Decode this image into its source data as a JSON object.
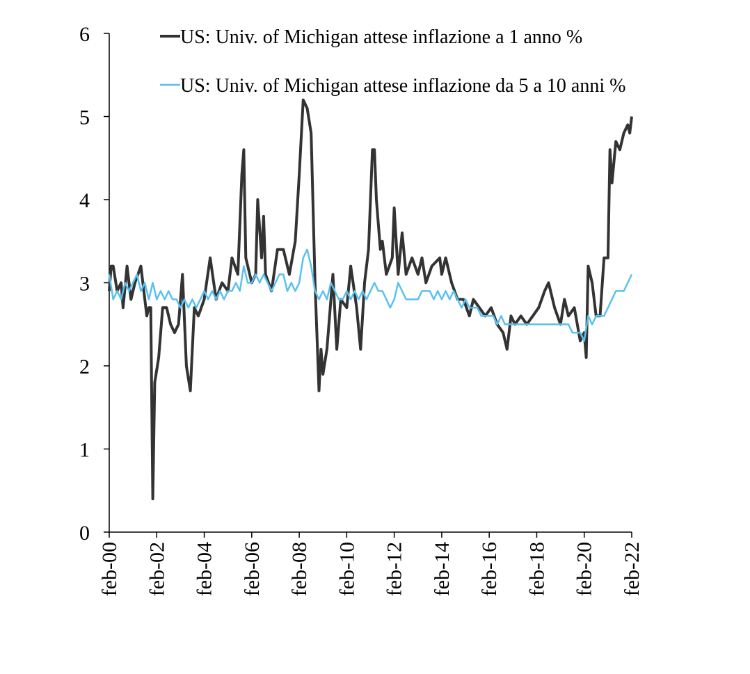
{
  "colors": {
    "series_1yr": "#333333",
    "series_5_10yr": "#5bc0f0",
    "axis": "#000000",
    "background": "#ffffff"
  },
  "chart_data": {
    "type": "line",
    "title": "",
    "xlabel": "",
    "ylabel": "",
    "ylim": [
      0,
      6
    ],
    "xlim": [
      "2000-02",
      "2022-02"
    ],
    "grid": false,
    "legend_position": "top",
    "yticks": [
      "0",
      "1",
      "2",
      "3",
      "4",
      "5",
      "6"
    ],
    "xticks": [
      "feb-00",
      "feb-02",
      "feb-04",
      "feb-06",
      "feb-08",
      "feb-10",
      "feb-12",
      "feb-14",
      "feb-16",
      "feb-18",
      "feb-20",
      "feb-22"
    ],
    "series": [
      {
        "name": "US: Univ. of Michigan attese inflazione a 1 anno %",
        "color": "#333333",
        "points": [
          [
            "2000-02",
            2.9
          ],
          [
            "2000-03",
            3.2
          ],
          [
            "2000-04",
            3.2
          ],
          [
            "2000-06",
            2.9
          ],
          [
            "2000-08",
            3.0
          ],
          [
            "2000-09",
            2.7
          ],
          [
            "2000-11",
            3.2
          ],
          [
            "2001-01",
            2.8
          ],
          [
            "2001-03",
            3.0
          ],
          [
            "2001-06",
            3.2
          ],
          [
            "2001-09",
            2.6
          ],
          [
            "2001-10",
            2.7
          ],
          [
            "2001-11",
            2.7
          ],
          [
            "2001-12",
            0.4
          ],
          [
            "2002-01",
            1.8
          ],
          [
            "2002-03",
            2.1
          ],
          [
            "2002-05",
            2.7
          ],
          [
            "2002-07",
            2.7
          ],
          [
            "2002-09",
            2.5
          ],
          [
            "2002-11",
            2.4
          ],
          [
            "2003-01",
            2.5
          ],
          [
            "2003-03",
            3.1
          ],
          [
            "2003-05",
            2.0
          ],
          [
            "2003-07",
            1.7
          ],
          [
            "2003-09",
            2.7
          ],
          [
            "2003-11",
            2.6
          ],
          [
            "2004-02",
            2.8
          ],
          [
            "2004-05",
            3.3
          ],
          [
            "2004-08",
            2.8
          ],
          [
            "2004-11",
            3.0
          ],
          [
            "2005-02",
            2.9
          ],
          [
            "2005-04",
            3.3
          ],
          [
            "2005-07",
            3.1
          ],
          [
            "2005-09",
            4.3
          ],
          [
            "2005-10",
            4.6
          ],
          [
            "2005-11",
            3.3
          ],
          [
            "2006-02",
            3.0
          ],
          [
            "2006-04",
            3.1
          ],
          [
            "2006-05",
            4.0
          ],
          [
            "2006-07",
            3.3
          ],
          [
            "2006-08",
            3.8
          ],
          [
            "2006-09",
            3.1
          ],
          [
            "2006-12",
            2.9
          ],
          [
            "2007-03",
            3.4
          ],
          [
            "2007-06",
            3.4
          ],
          [
            "2007-09",
            3.1
          ],
          [
            "2007-12",
            3.5
          ],
          [
            "2008-02",
            4.3
          ],
          [
            "2008-04",
            5.2
          ],
          [
            "2008-06",
            5.1
          ],
          [
            "2008-08",
            4.8
          ],
          [
            "2008-10",
            3.0
          ],
          [
            "2008-12",
            1.7
          ],
          [
            "2009-01",
            2.2
          ],
          [
            "2009-02",
            1.9
          ],
          [
            "2009-04",
            2.2
          ],
          [
            "2009-07",
            3.1
          ],
          [
            "2009-09",
            2.2
          ],
          [
            "2009-11",
            2.8
          ],
          [
            "2010-02",
            2.7
          ],
          [
            "2010-04",
            3.2
          ],
          [
            "2010-07",
            2.7
          ],
          [
            "2010-09",
            2.2
          ],
          [
            "2010-11",
            3.0
          ],
          [
            "2011-01",
            3.4
          ],
          [
            "2011-03",
            4.6
          ],
          [
            "2011-04",
            4.6
          ],
          [
            "2011-05",
            4.0
          ],
          [
            "2011-07",
            3.4
          ],
          [
            "2011-08",
            3.5
          ],
          [
            "2011-10",
            3.1
          ],
          [
            "2012-01",
            3.3
          ],
          [
            "2012-02",
            3.9
          ],
          [
            "2012-04",
            3.1
          ],
          [
            "2012-06",
            3.6
          ],
          [
            "2012-08",
            3.1
          ],
          [
            "2012-11",
            3.3
          ],
          [
            "2013-02",
            3.1
          ],
          [
            "2013-04",
            3.3
          ],
          [
            "2013-06",
            3.0
          ],
          [
            "2013-09",
            3.2
          ],
          [
            "2014-01",
            3.3
          ],
          [
            "2014-02",
            3.1
          ],
          [
            "2014-04",
            3.3
          ],
          [
            "2014-07",
            3.0
          ],
          [
            "2014-10",
            2.8
          ],
          [
            "2015-01",
            2.8
          ],
          [
            "2015-04",
            2.6
          ],
          [
            "2015-06",
            2.8
          ],
          [
            "2015-09",
            2.7
          ],
          [
            "2015-12",
            2.6
          ],
          [
            "2016-03",
            2.7
          ],
          [
            "2016-06",
            2.5
          ],
          [
            "2016-09",
            2.4
          ],
          [
            "2016-11",
            2.2
          ],
          [
            "2017-01",
            2.6
          ],
          [
            "2017-03",
            2.5
          ],
          [
            "2017-06",
            2.6
          ],
          [
            "2017-09",
            2.5
          ],
          [
            "2017-12",
            2.6
          ],
          [
            "2018-03",
            2.7
          ],
          [
            "2018-06",
            2.9
          ],
          [
            "2018-08",
            3.0
          ],
          [
            "2018-11",
            2.7
          ],
          [
            "2019-02",
            2.5
          ],
          [
            "2019-04",
            2.8
          ],
          [
            "2019-06",
            2.6
          ],
          [
            "2019-09",
            2.7
          ],
          [
            "2019-12",
            2.3
          ],
          [
            "2020-02",
            2.4
          ],
          [
            "2020-03",
            2.1
          ],
          [
            "2020-04",
            3.2
          ],
          [
            "2020-06",
            3.0
          ],
          [
            "2020-08",
            2.6
          ],
          [
            "2020-10",
            2.6
          ],
          [
            "2020-12",
            3.3
          ],
          [
            "2021-02",
            3.3
          ],
          [
            "2021-03",
            4.6
          ],
          [
            "2021-04",
            4.2
          ],
          [
            "2021-06",
            4.7
          ],
          [
            "2021-08",
            4.6
          ],
          [
            "2021-10",
            4.8
          ],
          [
            "2021-12",
            4.9
          ],
          [
            "2022-01",
            4.8
          ],
          [
            "2022-02",
            5.0
          ]
        ]
      },
      {
        "name": "US: Univ. of Michigan attese inflazione da 5 a 10 anni %",
        "color": "#5bc0f0",
        "points": [
          [
            "2000-02",
            3.1
          ],
          [
            "2000-04",
            2.8
          ],
          [
            "2000-06",
            2.9
          ],
          [
            "2000-08",
            2.8
          ],
          [
            "2000-10",
            3.0
          ],
          [
            "2000-12",
            2.9
          ],
          [
            "2001-02",
            3.0
          ],
          [
            "2001-04",
            3.1
          ],
          [
            "2001-06",
            2.9
          ],
          [
            "2001-08",
            3.0
          ],
          [
            "2001-10",
            2.8
          ],
          [
            "2001-12",
            3.0
          ],
          [
            "2002-02",
            2.8
          ],
          [
            "2002-04",
            2.9
          ],
          [
            "2002-06",
            2.8
          ],
          [
            "2002-08",
            2.9
          ],
          [
            "2002-10",
            2.8
          ],
          [
            "2002-12",
            2.8
          ],
          [
            "2003-02",
            2.7
          ],
          [
            "2003-04",
            2.8
          ],
          [
            "2003-06",
            2.7
          ],
          [
            "2003-08",
            2.8
          ],
          [
            "2003-10",
            2.7
          ],
          [
            "2003-12",
            2.8
          ],
          [
            "2004-02",
            2.9
          ],
          [
            "2004-04",
            2.8
          ],
          [
            "2004-06",
            2.9
          ],
          [
            "2004-08",
            2.8
          ],
          [
            "2004-10",
            2.9
          ],
          [
            "2004-12",
            2.8
          ],
          [
            "2005-02",
            2.9
          ],
          [
            "2005-04",
            2.9
          ],
          [
            "2005-06",
            3.0
          ],
          [
            "2005-08",
            2.9
          ],
          [
            "2005-10",
            3.2
          ],
          [
            "2005-12",
            3.0
          ],
          [
            "2006-02",
            3.0
          ],
          [
            "2006-04",
            3.1
          ],
          [
            "2006-06",
            3.0
          ],
          [
            "2006-08",
            3.1
          ],
          [
            "2006-10",
            3.0
          ],
          [
            "2006-12",
            2.9
          ],
          [
            "2007-02",
            3.0
          ],
          [
            "2007-04",
            3.1
          ],
          [
            "2007-06",
            3.1
          ],
          [
            "2007-08",
            2.9
          ],
          [
            "2007-10",
            3.0
          ],
          [
            "2007-12",
            2.9
          ],
          [
            "2008-02",
            3.0
          ],
          [
            "2008-04",
            3.3
          ],
          [
            "2008-06",
            3.4
          ],
          [
            "2008-08",
            3.2
          ],
          [
            "2008-10",
            2.9
          ],
          [
            "2008-12",
            2.8
          ],
          [
            "2009-02",
            2.9
          ],
          [
            "2009-04",
            2.8
          ],
          [
            "2009-06",
            3.0
          ],
          [
            "2009-08",
            2.9
          ],
          [
            "2009-10",
            2.8
          ],
          [
            "2009-12",
            2.8
          ],
          [
            "2010-02",
            2.9
          ],
          [
            "2010-04",
            2.8
          ],
          [
            "2010-06",
            2.9
          ],
          [
            "2010-08",
            2.8
          ],
          [
            "2010-10",
            2.9
          ],
          [
            "2010-12",
            2.8
          ],
          [
            "2011-02",
            2.9
          ],
          [
            "2011-04",
            3.0
          ],
          [
            "2011-06",
            2.9
          ],
          [
            "2011-08",
            2.9
          ],
          [
            "2011-10",
            2.8
          ],
          [
            "2011-12",
            2.7
          ],
          [
            "2012-02",
            2.8
          ],
          [
            "2012-04",
            3.0
          ],
          [
            "2012-06",
            2.9
          ],
          [
            "2012-08",
            2.8
          ],
          [
            "2012-10",
            2.8
          ],
          [
            "2012-12",
            2.8
          ],
          [
            "2013-02",
            2.8
          ],
          [
            "2013-04",
            2.9
          ],
          [
            "2013-06",
            2.9
          ],
          [
            "2013-08",
            2.9
          ],
          [
            "2013-10",
            2.8
          ],
          [
            "2013-12",
            2.9
          ],
          [
            "2014-02",
            2.8
          ],
          [
            "2014-04",
            2.9
          ],
          [
            "2014-06",
            2.8
          ],
          [
            "2014-08",
            2.9
          ],
          [
            "2014-10",
            2.8
          ],
          [
            "2014-12",
            2.7
          ],
          [
            "2015-02",
            2.8
          ],
          [
            "2015-04",
            2.7
          ],
          [
            "2015-06",
            2.7
          ],
          [
            "2015-08",
            2.7
          ],
          [
            "2015-10",
            2.6
          ],
          [
            "2015-12",
            2.6
          ],
          [
            "2016-02",
            2.6
          ],
          [
            "2016-04",
            2.6
          ],
          [
            "2016-06",
            2.5
          ],
          [
            "2016-08",
            2.6
          ],
          [
            "2016-10",
            2.5
          ],
          [
            "2016-12",
            2.5
          ],
          [
            "2017-02",
            2.5
          ],
          [
            "2017-04",
            2.5
          ],
          [
            "2017-06",
            2.5
          ],
          [
            "2017-08",
            2.5
          ],
          [
            "2017-10",
            2.5
          ],
          [
            "2017-12",
            2.5
          ],
          [
            "2018-02",
            2.5
          ],
          [
            "2018-04",
            2.5
          ],
          [
            "2018-06",
            2.5
          ],
          [
            "2018-08",
            2.5
          ],
          [
            "2018-10",
            2.5
          ],
          [
            "2018-12",
            2.5
          ],
          [
            "2019-02",
            2.5
          ],
          [
            "2019-04",
            2.5
          ],
          [
            "2019-06",
            2.5
          ],
          [
            "2019-08",
            2.4
          ],
          [
            "2019-10",
            2.4
          ],
          [
            "2019-12",
            2.4
          ],
          [
            "2020-02",
            2.3
          ],
          [
            "2020-04",
            2.6
          ],
          [
            "2020-06",
            2.5
          ],
          [
            "2020-08",
            2.6
          ],
          [
            "2020-10",
            2.6
          ],
          [
            "2020-12",
            2.6
          ],
          [
            "2021-02",
            2.7
          ],
          [
            "2021-04",
            2.8
          ],
          [
            "2021-06",
            2.9
          ],
          [
            "2021-08",
            2.9
          ],
          [
            "2021-10",
            2.9
          ],
          [
            "2021-12",
            3.0
          ],
          [
            "2022-02",
            3.1
          ]
        ]
      }
    ]
  }
}
